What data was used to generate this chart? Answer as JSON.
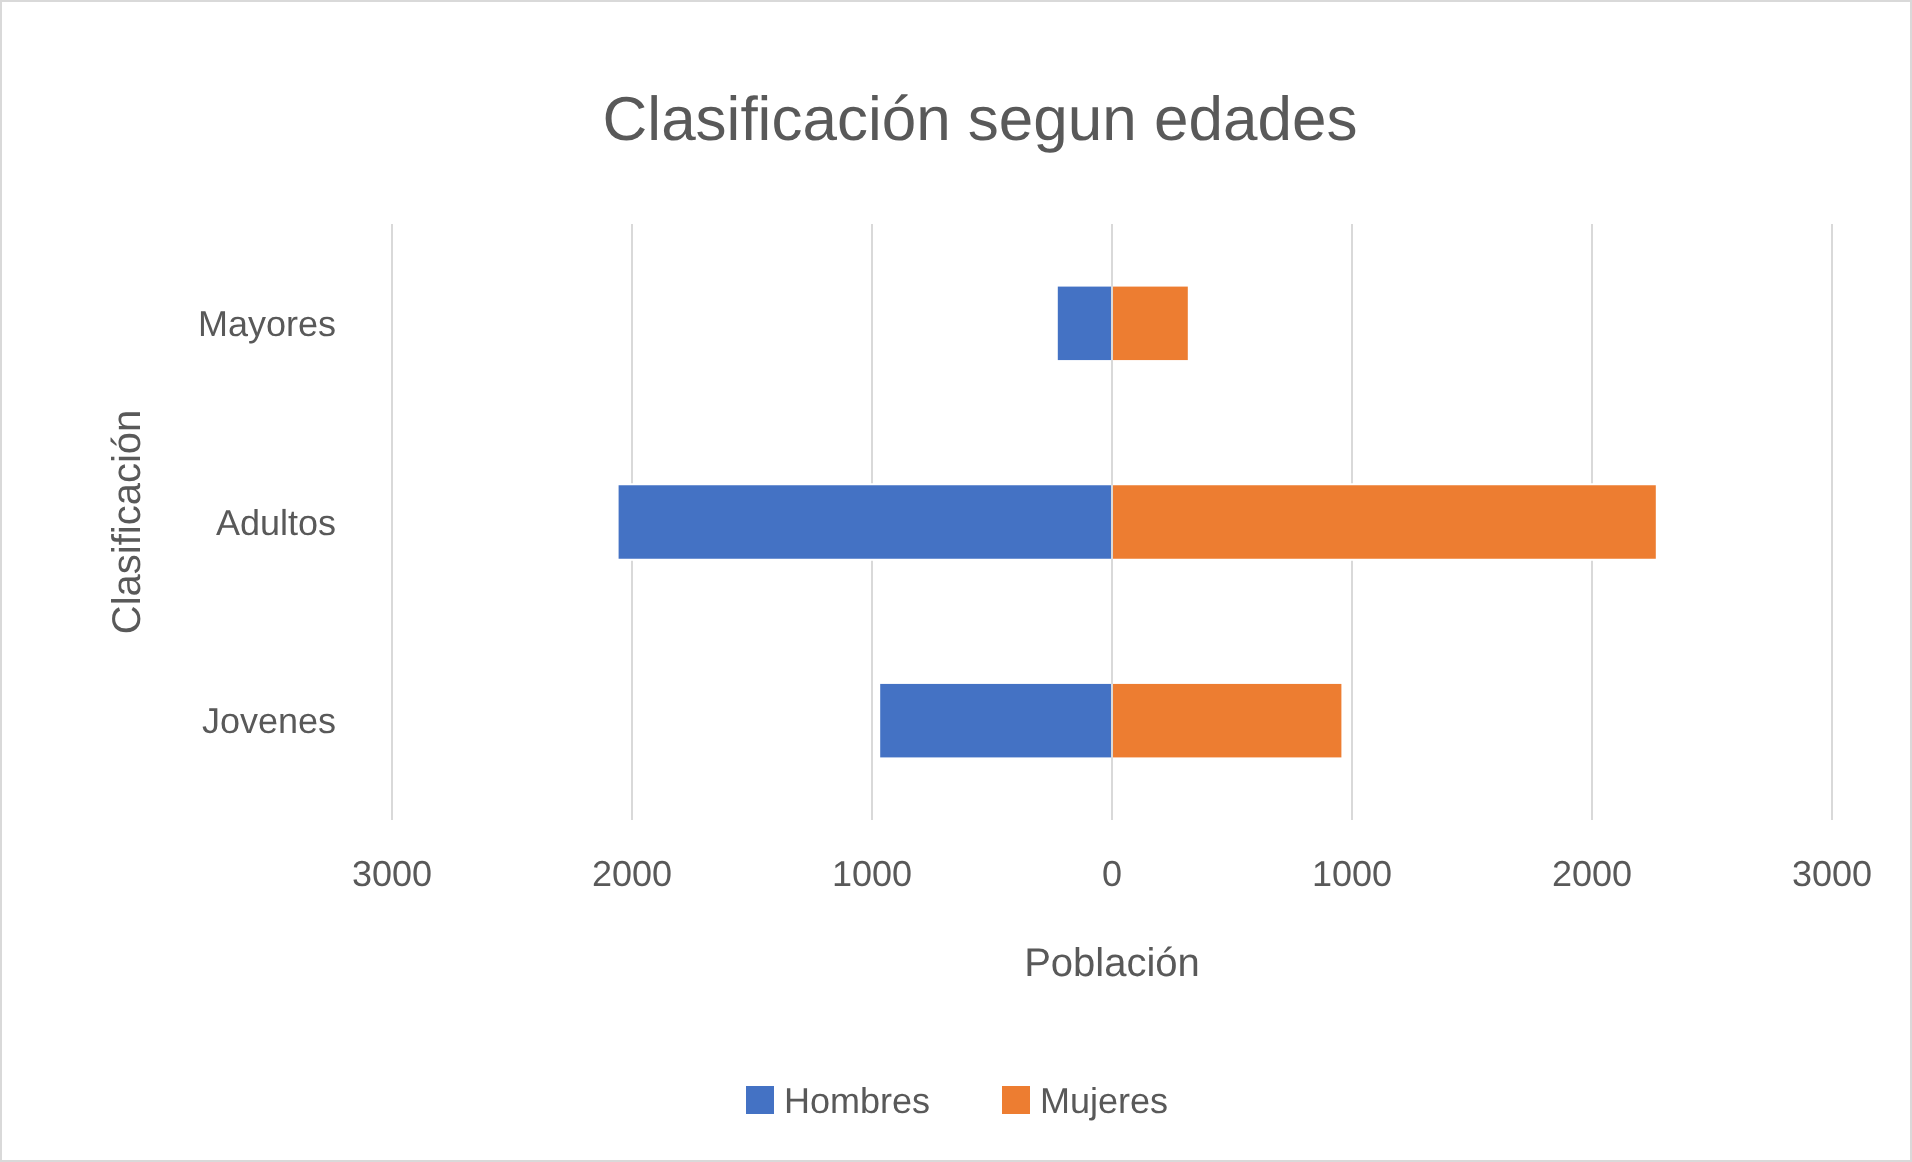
{
  "chart_data": {
    "type": "bar",
    "orientation": "horizontal",
    "stacked": true,
    "title": "Clasificación segun edades",
    "xlabel": "Población",
    "ylabel": "Clasificación",
    "categories": [
      "Mayores",
      "Adultos",
      "Jovenes"
    ],
    "series": [
      {
        "name": "Hombres",
        "color": "#4472c4",
        "values": [
          -230,
          -2060,
          -970
        ]
      },
      {
        "name": "Mujeres",
        "color": "#ed7d31",
        "values": [
          320,
          2270,
          960
        ]
      }
    ],
    "xlim": [
      -3000,
      3000
    ],
    "xticks": [
      {
        "value": -3000,
        "label": "3000"
      },
      {
        "value": -2000,
        "label": "2000"
      },
      {
        "value": -1000,
        "label": "1000"
      },
      0,
      1000,
      2000,
      3000
    ],
    "grid": "x",
    "legend": "bottom"
  }
}
